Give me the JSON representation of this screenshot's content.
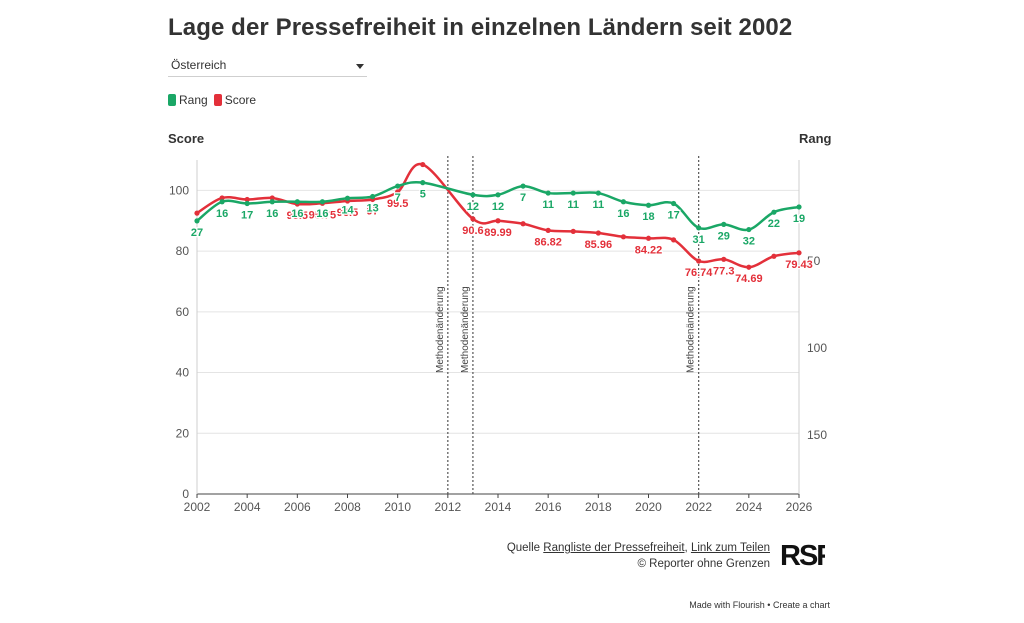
{
  "title": "Lage der Pressefreiheit in einzelnen Ländern seit 2002",
  "country_select": {
    "selected": "Österreich"
  },
  "legend": [
    {
      "label": "Rang",
      "color": "#1aa766"
    },
    {
      "label": "Score",
      "color": "#e3303a"
    }
  ],
  "left_axis_title": "Score",
  "right_axis_title": "Rang",
  "annotation_label": "Methodenänderung",
  "source": {
    "prefix": "Quelle",
    "link1": "Rangliste der Pressefreiheit",
    "separator": ",",
    "link2": "Link zum Teilen",
    "copyright": "© Reporter ohne Grenzen"
  },
  "logo_text": "RSF",
  "footer": {
    "made_with": "Made with Flourish",
    "bullet": "•",
    "create": "Create a chart"
  },
  "chart_data": {
    "type": "line",
    "x_ticks": [
      2002,
      2004,
      2006,
      2008,
      2010,
      2012,
      2014,
      2016,
      2018,
      2020,
      2022,
      2024,
      2026
    ],
    "left_y_ticks": [
      0,
      20,
      40,
      60,
      80,
      100
    ],
    "right_y_ticks": [
      50,
      100,
      150
    ],
    "x_range": [
      2002,
      2026
    ],
    "left_y_range": [
      0,
      110
    ],
    "right_y_range": [
      -8,
      184
    ],
    "grid": true,
    "annotations": [
      {
        "x": 2012,
        "label": "Methodenänderung"
      },
      {
        "x": 2013,
        "label": "Methodenänderung"
      },
      {
        "x": 2022,
        "label": "Methodenänderung"
      }
    ],
    "series": [
      {
        "name": "Rang",
        "axis": "right",
        "color": "#1aa766",
        "points": [
          {
            "x": 2002,
            "y": 27,
            "label": "27"
          },
          {
            "x": 2003,
            "y": 16,
            "label": "16"
          },
          {
            "x": 2004,
            "y": 17,
            "label": "17"
          },
          {
            "x": 2005,
            "y": 16,
            "label": "16"
          },
          {
            "x": 2006,
            "y": 16,
            "label": "16"
          },
          {
            "x": 2007,
            "y": 16,
            "label": "16"
          },
          {
            "x": 2008,
            "y": 14,
            "label": "14"
          },
          {
            "x": 2009,
            "y": 13,
            "label": "13"
          },
          {
            "x": 2010,
            "y": 7,
            "label": "7"
          },
          {
            "x": 2011,
            "y": 5,
            "label": "5"
          },
          {
            "x": 2013,
            "y": 12,
            "label": "12"
          },
          {
            "x": 2014,
            "y": 12,
            "label": "12"
          },
          {
            "x": 2015,
            "y": 7,
            "label": "7"
          },
          {
            "x": 2016,
            "y": 11,
            "label": "11"
          },
          {
            "x": 2017,
            "y": 11,
            "label": "11"
          },
          {
            "x": 2018,
            "y": 11,
            "label": "11"
          },
          {
            "x": 2019,
            "y": 16,
            "label": "16"
          },
          {
            "x": 2020,
            "y": 18,
            "label": "18"
          },
          {
            "x": 2021,
            "y": 17,
            "label": "17"
          },
          {
            "x": 2022,
            "y": 31,
            "label": "31"
          },
          {
            "x": 2023,
            "y": 29,
            "label": "29"
          },
          {
            "x": 2024,
            "y": 32,
            "label": "32"
          },
          {
            "x": 2025,
            "y": 22,
            "label": "22"
          },
          {
            "x": 2026,
            "y": 19,
            "label": "19"
          }
        ]
      },
      {
        "name": "Score",
        "axis": "left",
        "color": "#e3303a",
        "points": [
          {
            "x": 2002,
            "y": 92.5,
            "label": ""
          },
          {
            "x": 2003,
            "y": 97.5,
            "label": ""
          },
          {
            "x": 2004,
            "y": 97,
            "label": ""
          },
          {
            "x": 2005,
            "y": 97.5,
            "label": ""
          },
          {
            "x": 2006,
            "y": 95.5,
            "label": "95.5"
          },
          {
            "x": 2007,
            "y": 95.75,
            "label": "95.75"
          },
          {
            "x": 2008,
            "y": 96.5,
            "label": "96.5"
          },
          {
            "x": 2009,
            "y": 97,
            "label": "97"
          },
          {
            "x": 2010,
            "y": 99.5,
            "label": "99.5"
          },
          {
            "x": 2011,
            "y": 108.5,
            "label": ""
          },
          {
            "x": 2013,
            "y": 90.6,
            "label": "90.6"
          },
          {
            "x": 2014,
            "y": 89.99,
            "label": "89.99"
          },
          {
            "x": 2015,
            "y": 89,
            "label": ""
          },
          {
            "x": 2016,
            "y": 86.82,
            "label": "86.82"
          },
          {
            "x": 2017,
            "y": 86.5,
            "label": ""
          },
          {
            "x": 2018,
            "y": 85.96,
            "label": "85.96"
          },
          {
            "x": 2019,
            "y": 84.7,
            "label": ""
          },
          {
            "x": 2020,
            "y": 84.22,
            "label": "84.22"
          },
          {
            "x": 2021,
            "y": 83.7,
            "label": ""
          },
          {
            "x": 2022,
            "y": 76.74,
            "label": "76.74"
          },
          {
            "x": 2023,
            "y": 77.3,
            "label": "77.3"
          },
          {
            "x": 2024,
            "y": 74.69,
            "label": "74.69"
          },
          {
            "x": 2025,
            "y": 78.3,
            "label": ""
          },
          {
            "x": 2026,
            "y": 79.43,
            "label": "79.43"
          }
        ]
      }
    ]
  }
}
